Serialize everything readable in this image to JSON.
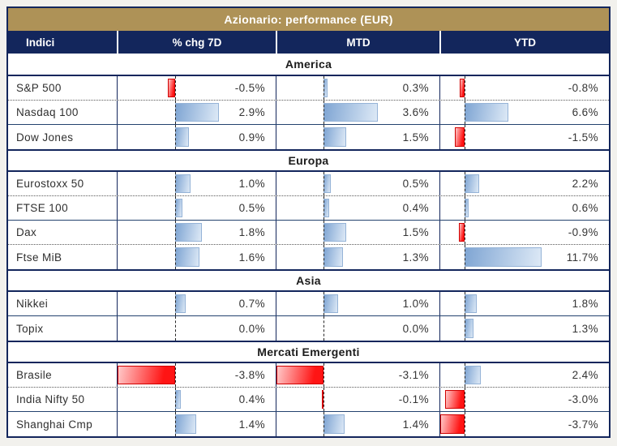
{
  "title": "Azionario: performance (EUR)",
  "columns": {
    "indici": "Indici",
    "chg7d": "% chg 7D",
    "mtd": "MTD",
    "ytd": "YTD"
  },
  "colors": {
    "title_gold": "#ae9257",
    "header_navy": "#13265c",
    "positive_bar_blue": "#7fa5d3",
    "negative_bar_red": "#ff1414",
    "value_text": "#353535"
  },
  "chart_data": {
    "type": "table",
    "title": "Azionario: performance (EUR)",
    "columns": [
      "Indici",
      "% chg 7D",
      "MTD",
      "YTD"
    ],
    "value_format": "percent, one decimal",
    "bar_style": "gradient data bars from dashed zero axis, blue positive, red negative, scaled per column min..max",
    "sections": [
      {
        "name": "America",
        "rows": [
          {
            "indice": "S&P 500",
            "chg7d": -0.5,
            "mtd": 0.3,
            "ytd": -0.8,
            "sep": "dotted"
          },
          {
            "indice": "Nasdaq 100",
            "chg7d": 2.9,
            "mtd": 3.6,
            "ytd": 6.6,
            "sep": "solid"
          },
          {
            "indice": "Dow Jones",
            "chg7d": 0.9,
            "mtd": 1.5,
            "ytd": -1.5,
            "sep": "none"
          }
        ]
      },
      {
        "name": "Europa",
        "rows": [
          {
            "indice": "Eurostoxx 50",
            "chg7d": 1.0,
            "mtd": 0.5,
            "ytd": 2.2,
            "sep": "dotted"
          },
          {
            "indice": "FTSE 100",
            "chg7d": 0.5,
            "mtd": 0.4,
            "ytd": 0.6,
            "sep": "solid"
          },
          {
            "indice": "Dax",
            "chg7d": 1.8,
            "mtd": 1.5,
            "ytd": -0.9,
            "sep": "dotted"
          },
          {
            "indice": "Ftse MiB",
            "chg7d": 1.6,
            "mtd": 1.3,
            "ytd": 11.7,
            "sep": "none"
          }
        ]
      },
      {
        "name": "Asia",
        "rows": [
          {
            "indice": "Nikkei",
            "chg7d": 0.7,
            "mtd": 1.0,
            "ytd": 1.8,
            "sep": "solid"
          },
          {
            "indice": "Topix",
            "chg7d": 0.0,
            "mtd": 0.0,
            "ytd": 1.3,
            "sep": "none"
          }
        ]
      },
      {
        "name": "Mercati Emergenti",
        "rows": [
          {
            "indice": "Brasile",
            "chg7d": -3.8,
            "mtd": -3.1,
            "ytd": 2.4,
            "sep": "dotted"
          },
          {
            "indice": "India Nifty 50",
            "chg7d": 0.4,
            "mtd": -0.1,
            "ytd": -3.0,
            "sep": "solid"
          },
          {
            "indice": "Shanghai Cmp",
            "chg7d": 1.4,
            "mtd": 1.4,
            "ytd": -3.7,
            "sep": "none"
          }
        ]
      }
    ]
  }
}
